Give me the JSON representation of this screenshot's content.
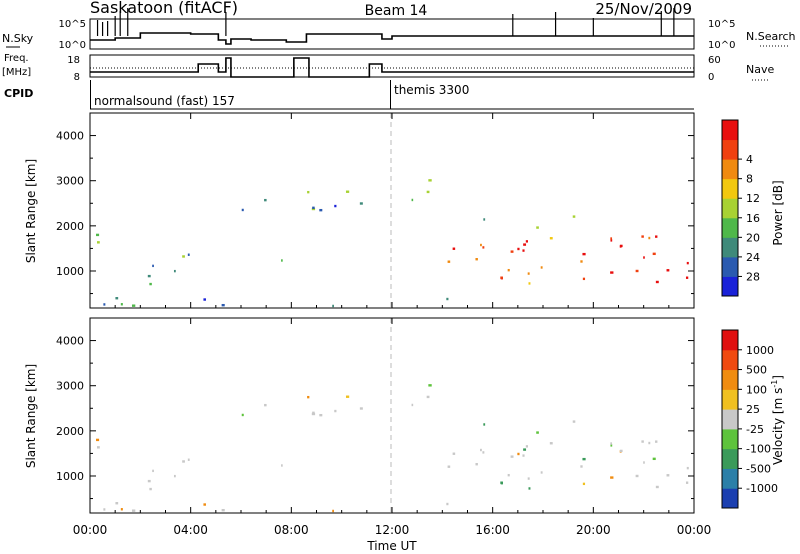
{
  "header": {
    "station": "Saskatoon (fitACF)",
    "beam": "Beam 14",
    "date": "25/Nov/2009"
  },
  "strip_labels": {
    "nsky": "N.Sky",
    "nsky_top": "10^5",
    "nsky_bottom": "10^0",
    "nsearch": "N.Search",
    "nsearch_top": "10^5",
    "nsearch_bottom": "10^0",
    "freq_line1": "Freq.",
    "freq_line2": "[MHz]",
    "freq_top": "18",
    "freq_bottom": "8",
    "nave": "Nave",
    "nave_top": "60",
    "nave_bottom": "0",
    "cpid": "CPID"
  },
  "cpid_segments": [
    {
      "label": "normalsound (fast) 157",
      "start_hour": 0
    },
    {
      "label": "themis 3300",
      "start_hour": 12
    }
  ],
  "chart_data": [
    {
      "type": "heatmap",
      "name": "Power",
      "xlabel": "Time UT",
      "ylabel": "Slant Range [km]",
      "xlim": [
        0,
        24
      ],
      "ylim": [
        180,
        4500
      ],
      "yticks": [
        "1000",
        "2000",
        "3000",
        "4000"
      ],
      "colorbar_label": "Power [dB]",
      "colorbar_ticks": [
        "4",
        "8",
        "12",
        "16",
        "20",
        "24",
        "28"
      ],
      "colorbar_colors": [
        "#1a22d8",
        "#2a5ab0",
        "#3f8a7a",
        "#4fb84a",
        "#a8d233",
        "#f2c80f",
        "#f08a10",
        "#f04010",
        "#e80e0e"
      ]
    },
    {
      "type": "heatmap",
      "name": "Velocity",
      "xlabel": "Time UT",
      "ylabel": "Slant Range [km]",
      "xlim": [
        0,
        24
      ],
      "ylim": [
        180,
        4500
      ],
      "yticks": [
        "1000",
        "2000",
        "3000",
        "4000"
      ],
      "colorbar_label": "Velocity [m s",
      "colorbar_label_sup": "-1",
      "colorbar_label_end": "]",
      "colorbar_ticks": [
        "1000",
        "500",
        "100",
        "25",
        "-25",
        "-100",
        "-500",
        "-1000"
      ],
      "colorbar_colors": [
        "#1b3fb0",
        "#2b7fa8",
        "#3a9a5a",
        "#5ec33c",
        "#c8c8c8",
        "#f0c020",
        "#f08c10",
        "#f04a10",
        "#e01010"
      ]
    }
  ],
  "time_axis": {
    "ticks": [
      "00:00",
      "04:00",
      "08:00",
      "12:00",
      "16:00",
      "20:00",
      "00:00"
    ],
    "label": "Time UT"
  }
}
